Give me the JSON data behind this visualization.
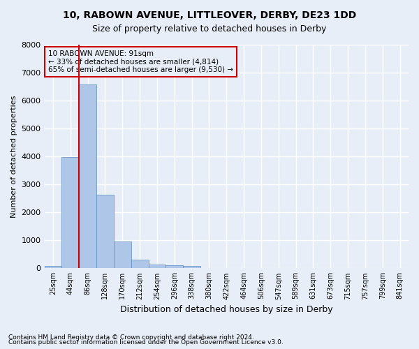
{
  "title1": "10, RABOWN AVENUE, LITTLEOVER, DERBY, DE23 1DD",
  "title2": "Size of property relative to detached houses in Derby",
  "xlabel": "Distribution of detached houses by size in Derby",
  "ylabel": "Number of detached properties",
  "footnote1": "Contains HM Land Registry data © Crown copyright and database right 2024.",
  "footnote2": "Contains public sector information licensed under the Open Government Licence v3.0.",
  "annotation_title": "10 RABOWN AVENUE: 91sqm",
  "annotation_line1": "← 33% of detached houses are smaller (4,814)",
  "annotation_line2": "65% of semi-detached houses are larger (9,530) →",
  "bar_values": [
    75,
    3980,
    6580,
    2620,
    960,
    300,
    130,
    110,
    90,
    0,
    0,
    0,
    0,
    0,
    0,
    0,
    0,
    0,
    0,
    0,
    0
  ],
  "bar_labels": [
    "25sqm",
    "44sqm",
    "86sqm",
    "128sqm",
    "170sqm",
    "212sqm",
    "254sqm",
    "296sqm",
    "338sqm",
    "380sqm",
    "422sqm",
    "464sqm",
    "506sqm",
    "547sqm",
    "589sqm",
    "631sqm",
    "673sqm",
    "715sqm",
    "757sqm",
    "799sqm",
    "841sqm"
  ],
  "bar_color": "#aec6e8",
  "bar_edge_color": "#5a8fc0",
  "bg_color": "#e8eef7",
  "grid_color": "#ffffff",
  "vline_color": "#cc0000",
  "annotation_box_color": "#cc0000",
  "ylim": [
    0,
    8000
  ],
  "yticks": [
    0,
    1000,
    2000,
    3000,
    4000,
    5000,
    6000,
    7000,
    8000
  ]
}
